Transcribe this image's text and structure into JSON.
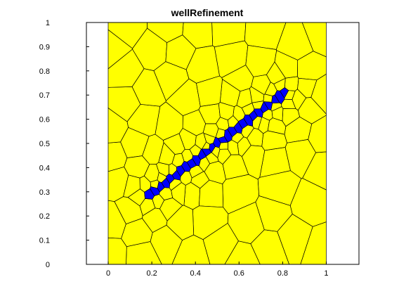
{
  "title": "wellRefinement",
  "x_axis": {
    "ticks": [
      "0",
      "0.2",
      "0.4",
      "0.6",
      "0.8",
      "1"
    ],
    "range": [
      -0.1,
      1.15
    ]
  },
  "y_axis": {
    "ticks": [
      "0",
      "0.1",
      "0.2",
      "0.3",
      "0.4",
      "0.5",
      "0.6",
      "0.7",
      "0.8",
      "0.9",
      "1"
    ],
    "range": [
      0,
      1
    ]
  },
  "domain": {
    "x": [
      0,
      1
    ],
    "y": [
      0,
      1
    ]
  },
  "well": {
    "start": [
      0.19,
      0.29
    ],
    "end": [
      0.81,
      0.71
    ]
  },
  "colors": {
    "cell_fill": "#ffff00",
    "well_fill": "#0000ff",
    "edge": "#000000"
  }
}
